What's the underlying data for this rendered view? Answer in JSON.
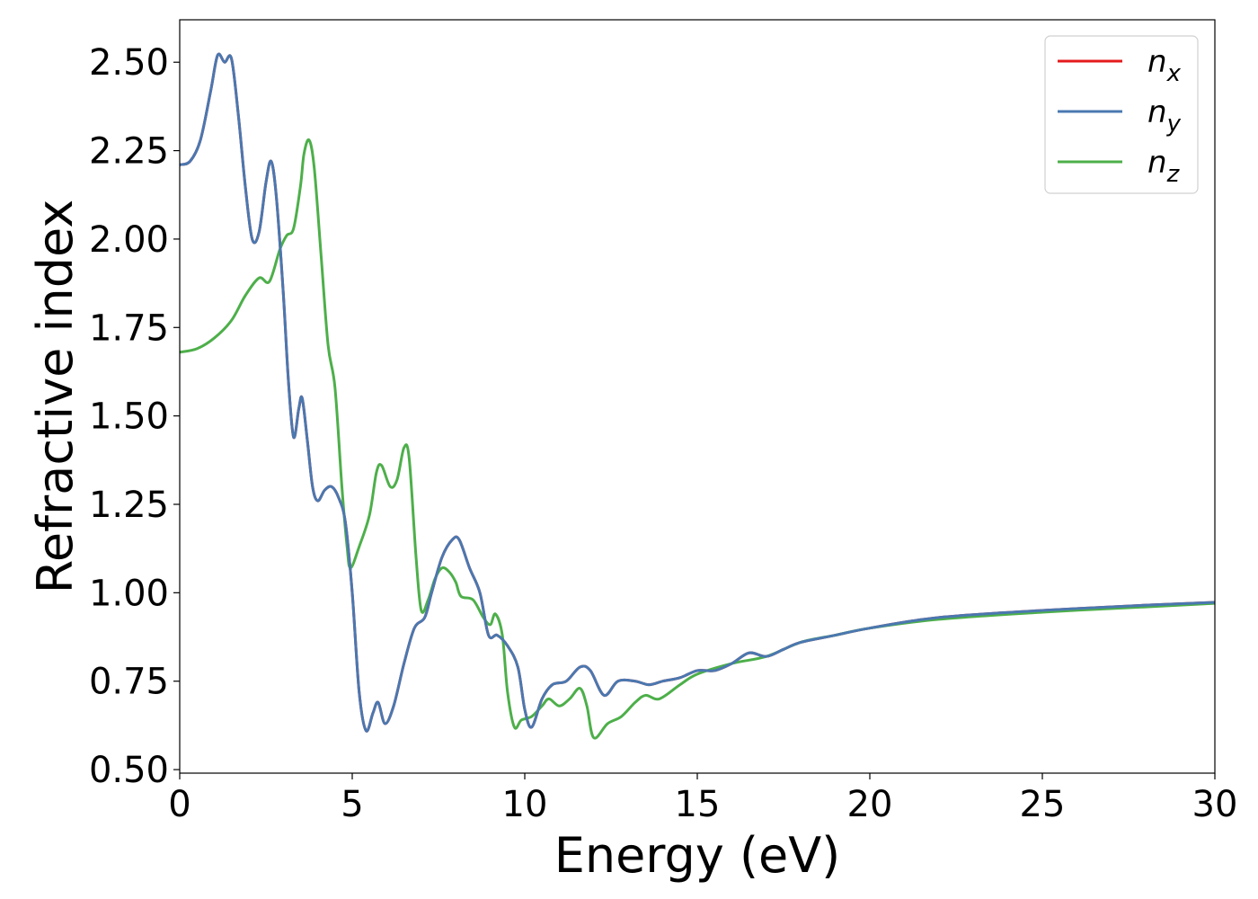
{
  "chart_data": {
    "type": "line",
    "xlabel": "Energy (eV)",
    "ylabel": "Refractive index",
    "xlim": [
      0,
      30
    ],
    "ylim": [
      0.49,
      2.62
    ],
    "xticks": [
      0,
      5,
      10,
      15,
      20,
      25,
      30
    ],
    "xtick_labels": [
      "0",
      "5",
      "10",
      "15",
      "20",
      "25",
      "30"
    ],
    "yticks": [
      0.5,
      0.75,
      1.0,
      1.25,
      1.5,
      1.75,
      2.0,
      2.25,
      2.5
    ],
    "ytick_labels": [
      "0.50",
      "0.75",
      "1.00",
      "1.25",
      "1.50",
      "1.75",
      "2.00",
      "2.25",
      "2.50"
    ],
    "grid": false,
    "legend_position": "top-right",
    "series": [
      {
        "name": "n",
        "subscript": "x",
        "color": "#e41a1c",
        "points": [
          [
            0,
            2.21
          ],
          [
            0.3,
            2.22
          ],
          [
            0.6,
            2.28
          ],
          [
            0.9,
            2.42
          ],
          [
            1.1,
            2.52
          ],
          [
            1.3,
            2.5
          ],
          [
            1.5,
            2.51
          ],
          [
            1.7,
            2.35
          ],
          [
            1.9,
            2.15
          ],
          [
            2.1,
            2.0
          ],
          [
            2.3,
            2.02
          ],
          [
            2.5,
            2.16
          ],
          [
            2.65,
            2.22
          ],
          [
            2.8,
            2.12
          ],
          [
            3.0,
            1.85
          ],
          [
            3.15,
            1.6
          ],
          [
            3.3,
            1.44
          ],
          [
            3.45,
            1.52
          ],
          [
            3.55,
            1.55
          ],
          [
            3.7,
            1.43
          ],
          [
            3.85,
            1.3
          ],
          [
            4.0,
            1.26
          ],
          [
            4.2,
            1.29
          ],
          [
            4.4,
            1.3
          ],
          [
            4.6,
            1.27
          ],
          [
            4.8,
            1.2
          ],
          [
            5.0,
            1.0
          ],
          [
            5.2,
            0.72
          ],
          [
            5.4,
            0.61
          ],
          [
            5.6,
            0.66
          ],
          [
            5.75,
            0.69
          ],
          [
            5.95,
            0.63
          ],
          [
            6.2,
            0.68
          ],
          [
            6.5,
            0.8
          ],
          [
            6.8,
            0.9
          ],
          [
            7.1,
            0.93
          ],
          [
            7.3,
            1.0
          ],
          [
            7.6,
            1.1
          ],
          [
            7.9,
            1.15
          ],
          [
            8.1,
            1.15
          ],
          [
            8.4,
            1.07
          ],
          [
            8.7,
            1.0
          ],
          [
            8.95,
            0.88
          ],
          [
            9.2,
            0.88
          ],
          [
            9.5,
            0.85
          ],
          [
            9.8,
            0.79
          ],
          [
            10.0,
            0.67
          ],
          [
            10.2,
            0.62
          ],
          [
            10.5,
            0.7
          ],
          [
            10.8,
            0.74
          ],
          [
            11.2,
            0.75
          ],
          [
            11.6,
            0.79
          ],
          [
            11.9,
            0.78
          ],
          [
            12.3,
            0.71
          ],
          [
            12.7,
            0.75
          ],
          [
            13.2,
            0.75
          ],
          [
            13.6,
            0.74
          ],
          [
            14.0,
            0.75
          ],
          [
            14.5,
            0.76
          ],
          [
            15.0,
            0.78
          ],
          [
            15.5,
            0.78
          ],
          [
            16.0,
            0.8
          ],
          [
            16.5,
            0.83
          ],
          [
            17.0,
            0.82
          ],
          [
            17.5,
            0.84
          ],
          [
            18.0,
            0.86
          ],
          [
            19.0,
            0.88
          ],
          [
            20.0,
            0.9
          ],
          [
            22.0,
            0.93
          ],
          [
            25.0,
            0.95
          ],
          [
            28.0,
            0.965
          ],
          [
            30.0,
            0.973
          ]
        ]
      },
      {
        "name": "n",
        "subscript": "y",
        "color": "#4a78b0",
        "points": [
          [
            0,
            2.21
          ],
          [
            0.3,
            2.22
          ],
          [
            0.6,
            2.28
          ],
          [
            0.9,
            2.42
          ],
          [
            1.1,
            2.52
          ],
          [
            1.3,
            2.5
          ],
          [
            1.5,
            2.51
          ],
          [
            1.7,
            2.35
          ],
          [
            1.9,
            2.15
          ],
          [
            2.1,
            2.0
          ],
          [
            2.3,
            2.02
          ],
          [
            2.5,
            2.16
          ],
          [
            2.65,
            2.22
          ],
          [
            2.8,
            2.12
          ],
          [
            3.0,
            1.85
          ],
          [
            3.15,
            1.6
          ],
          [
            3.3,
            1.44
          ],
          [
            3.45,
            1.52
          ],
          [
            3.55,
            1.55
          ],
          [
            3.7,
            1.43
          ],
          [
            3.85,
            1.3
          ],
          [
            4.0,
            1.26
          ],
          [
            4.2,
            1.29
          ],
          [
            4.4,
            1.3
          ],
          [
            4.6,
            1.27
          ],
          [
            4.8,
            1.2
          ],
          [
            5.0,
            1.0
          ],
          [
            5.2,
            0.72
          ],
          [
            5.4,
            0.61
          ],
          [
            5.6,
            0.66
          ],
          [
            5.75,
            0.69
          ],
          [
            5.95,
            0.63
          ],
          [
            6.2,
            0.68
          ],
          [
            6.5,
            0.8
          ],
          [
            6.8,
            0.9
          ],
          [
            7.1,
            0.93
          ],
          [
            7.3,
            1.0
          ],
          [
            7.6,
            1.1
          ],
          [
            7.9,
            1.15
          ],
          [
            8.1,
            1.15
          ],
          [
            8.4,
            1.07
          ],
          [
            8.7,
            1.0
          ],
          [
            8.95,
            0.88
          ],
          [
            9.2,
            0.88
          ],
          [
            9.5,
            0.85
          ],
          [
            9.8,
            0.79
          ],
          [
            10.0,
            0.67
          ],
          [
            10.2,
            0.62
          ],
          [
            10.5,
            0.7
          ],
          [
            10.8,
            0.74
          ],
          [
            11.2,
            0.75
          ],
          [
            11.6,
            0.79
          ],
          [
            11.9,
            0.78
          ],
          [
            12.3,
            0.71
          ],
          [
            12.7,
            0.75
          ],
          [
            13.2,
            0.75
          ],
          [
            13.6,
            0.74
          ],
          [
            14.0,
            0.75
          ],
          [
            14.5,
            0.76
          ],
          [
            15.0,
            0.78
          ],
          [
            15.5,
            0.78
          ],
          [
            16.0,
            0.8
          ],
          [
            16.5,
            0.83
          ],
          [
            17.0,
            0.82
          ],
          [
            17.5,
            0.84
          ],
          [
            18.0,
            0.86
          ],
          [
            19.0,
            0.88
          ],
          [
            20.0,
            0.9
          ],
          [
            22.0,
            0.93
          ],
          [
            25.0,
            0.95
          ],
          [
            28.0,
            0.965
          ],
          [
            30.0,
            0.973
          ]
        ]
      },
      {
        "name": "n",
        "subscript": "z",
        "color": "#4daf4a",
        "points": [
          [
            0,
            1.68
          ],
          [
            0.5,
            1.69
          ],
          [
            1.0,
            1.72
          ],
          [
            1.5,
            1.77
          ],
          [
            1.9,
            1.84
          ],
          [
            2.3,
            1.89
          ],
          [
            2.6,
            1.88
          ],
          [
            2.9,
            1.97
          ],
          [
            3.1,
            2.01
          ],
          [
            3.3,
            2.03
          ],
          [
            3.5,
            2.15
          ],
          [
            3.6,
            2.24
          ],
          [
            3.75,
            2.28
          ],
          [
            3.9,
            2.2
          ],
          [
            4.1,
            1.95
          ],
          [
            4.3,
            1.7
          ],
          [
            4.5,
            1.58
          ],
          [
            4.7,
            1.3
          ],
          [
            4.85,
            1.13
          ],
          [
            4.95,
            1.07
          ],
          [
            5.2,
            1.13
          ],
          [
            5.5,
            1.22
          ],
          [
            5.7,
            1.34
          ],
          [
            5.85,
            1.36
          ],
          [
            6.1,
            1.3
          ],
          [
            6.3,
            1.32
          ],
          [
            6.5,
            1.41
          ],
          [
            6.65,
            1.38
          ],
          [
            6.85,
            1.1
          ],
          [
            7.0,
            0.95
          ],
          [
            7.2,
            0.98
          ],
          [
            7.4,
            1.04
          ],
          [
            7.6,
            1.07
          ],
          [
            7.8,
            1.06
          ],
          [
            8.0,
            1.03
          ],
          [
            8.15,
            0.99
          ],
          [
            8.5,
            0.98
          ],
          [
            8.8,
            0.93
          ],
          [
            9.0,
            0.91
          ],
          [
            9.15,
            0.94
          ],
          [
            9.35,
            0.88
          ],
          [
            9.5,
            0.72
          ],
          [
            9.7,
            0.62
          ],
          [
            9.9,
            0.64
          ],
          [
            10.2,
            0.65
          ],
          [
            10.5,
            0.68
          ],
          [
            10.7,
            0.7
          ],
          [
            11.0,
            0.68
          ],
          [
            11.3,
            0.7
          ],
          [
            11.6,
            0.73
          ],
          [
            11.8,
            0.68
          ],
          [
            12.0,
            0.59
          ],
          [
            12.4,
            0.63
          ],
          [
            12.8,
            0.65
          ],
          [
            13.2,
            0.69
          ],
          [
            13.5,
            0.71
          ],
          [
            13.9,
            0.7
          ],
          [
            14.5,
            0.74
          ],
          [
            15.0,
            0.77
          ],
          [
            16.0,
            0.8
          ],
          [
            17.0,
            0.82
          ],
          [
            18.0,
            0.86
          ],
          [
            19.0,
            0.88
          ],
          [
            20.0,
            0.9
          ],
          [
            22.0,
            0.925
          ],
          [
            25.0,
            0.945
          ],
          [
            28.0,
            0.96
          ],
          [
            30.0,
            0.97
          ]
        ]
      }
    ]
  }
}
